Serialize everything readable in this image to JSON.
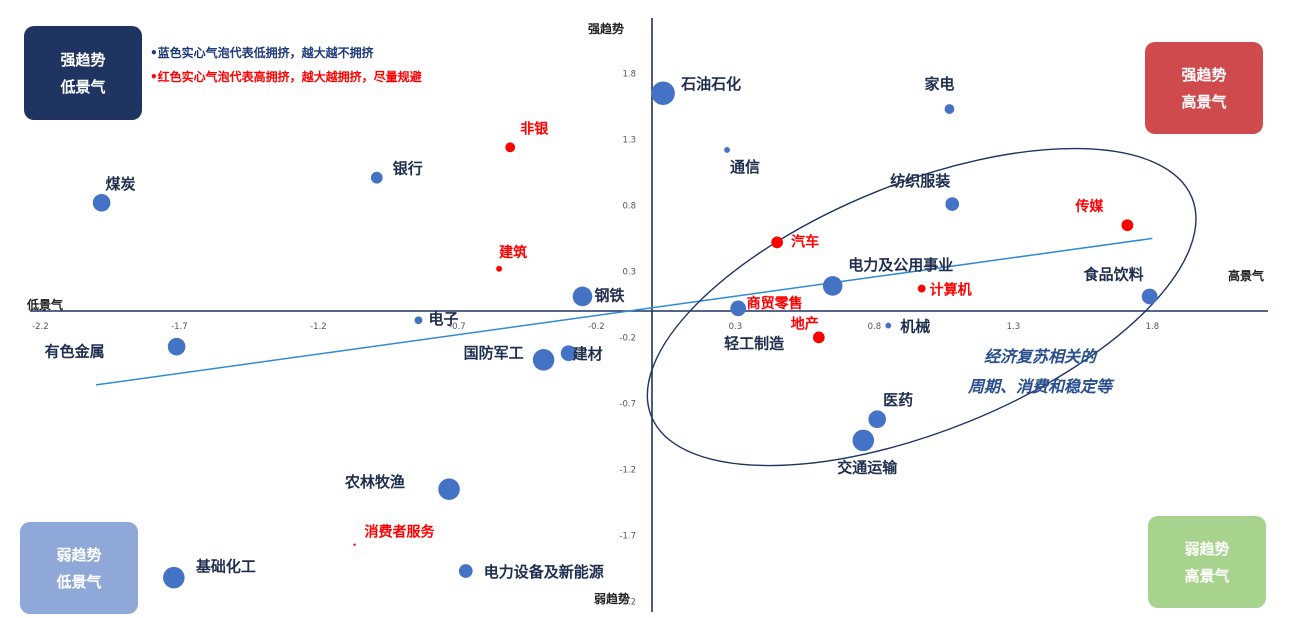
{
  "quadrants": {
    "top_left": {
      "line1": "强趋势",
      "line2": "低景气",
      "color": "#1f3461"
    },
    "top_right": {
      "line1": "强趋势",
      "line2": "高景气",
      "color": "#cf4a4d"
    },
    "bottom_left": {
      "line1": "弱趋势",
      "line2": "低景气",
      "color": "#8fa8d8"
    },
    "bottom_right": {
      "line1": "弱趋势",
      "line2": "高景气",
      "color": "#a8d38f"
    }
  },
  "notes": {
    "blue": "•蓝色实心气泡代表低拥挤，越大越不拥挤",
    "red": "•红色实心气泡代表高拥挤，越大越拥挤，尽量规避"
  },
  "ellipse_note": {
    "line1": "经济复苏相关的",
    "line2": "周期、消费和稳定等"
  },
  "colors": {
    "blue_bubble": "#4472c4",
    "red_bubble": "#ff0000",
    "axis": "#1f3461",
    "trend": "#2e8bd6",
    "ellipse": "#1f3461"
  },
  "chart_data": {
    "type": "scatter",
    "title": "",
    "xlabel_pos": "高景气",
    "xlabel_neg": "低景气",
    "ylabel_pos": "强趋势",
    "ylabel_neg": "弱趋势",
    "xlim": [
      -2.4,
      2.2
    ],
    "ylim": [
      -2.2,
      2.0
    ],
    "x_ticks": [
      -2.2,
      -1.7,
      -1.2,
      -0.7,
      -0.2,
      0.3,
      0.8,
      1.3,
      1.8
    ],
    "y_ticks": [
      1.8,
      1.3,
      0.8,
      0.3,
      -0.2,
      -0.7,
      -1.2,
      -1.7,
      -2.2
    ],
    "trendline": {
      "x1": -2.0,
      "y1": -0.56,
      "x2": 1.8,
      "y2": 0.55
    },
    "ellipse": {
      "cx": 0.97,
      "cy": 0.03,
      "rx": 1.38,
      "ry": 1.02,
      "rotate": -22
    },
    "points": [
      {
        "name": "石油石化",
        "x": 0.04,
        "y": 1.65,
        "size": 12,
        "color": "blue"
      },
      {
        "name": "家电",
        "x": 1.07,
        "y": 1.53,
        "size": 5,
        "color": "blue"
      },
      {
        "name": "通信",
        "x": 0.27,
        "y": 1.22,
        "size": 3,
        "color": "blue"
      },
      {
        "name": "非银",
        "x": -0.51,
        "y": 1.24,
        "size": 5,
        "color": "red"
      },
      {
        "name": "银行",
        "x": -0.99,
        "y": 1.01,
        "size": 6,
        "color": "blue"
      },
      {
        "name": "煤炭",
        "x": -1.98,
        "y": 0.82,
        "size": 9,
        "color": "blue"
      },
      {
        "name": "纺织服装",
        "x": 1.08,
        "y": 0.81,
        "size": 7,
        "color": "blue"
      },
      {
        "name": "传媒",
        "x": 1.71,
        "y": 0.65,
        "size": 6,
        "color": "red"
      },
      {
        "name": "汽车",
        "x": 0.45,
        "y": 0.52,
        "size": 6,
        "color": "red"
      },
      {
        "name": "建筑",
        "x": -0.55,
        "y": 0.32,
        "size": 3,
        "color": "red"
      },
      {
        "name": "电力及公用事业",
        "x": 0.65,
        "y": 0.19,
        "size": 10,
        "color": "blue"
      },
      {
        "name": "计算机",
        "x": 0.97,
        "y": 0.17,
        "size": 4,
        "color": "red"
      },
      {
        "name": "食品饮料",
        "x": 1.79,
        "y": 0.11,
        "size": 8,
        "color": "blue"
      },
      {
        "name": "钢铁",
        "x": -0.25,
        "y": 0.11,
        "size": 10,
        "color": "blue"
      },
      {
        "name": "商贸零售",
        "x": 0.47,
        "y": 0.07,
        "size": 1,
        "color": "red"
      },
      {
        "name": "轻工制造",
        "x": 0.31,
        "y": 0.02,
        "size": 8,
        "color": "blue"
      },
      {
        "name": "电子",
        "x": -0.84,
        "y": -0.07,
        "size": 4,
        "color": "blue"
      },
      {
        "name": "机械",
        "x": 0.85,
        "y": -0.11,
        "size": 3,
        "color": "blue"
      },
      {
        "name": "地产",
        "x": 0.6,
        "y": -0.2,
        "size": 6,
        "color": "red"
      },
      {
        "name": "有色金属",
        "x": -1.71,
        "y": -0.27,
        "size": 9,
        "color": "blue"
      },
      {
        "name": "建材",
        "x": -0.3,
        "y": -0.32,
        "size": 8,
        "color": "blue"
      },
      {
        "name": "国防军工",
        "x": -0.39,
        "y": -0.37,
        "size": 11,
        "color": "blue"
      },
      {
        "name": "医药",
        "x": 0.81,
        "y": -0.82,
        "size": 9,
        "color": "blue"
      },
      {
        "name": "交通运输",
        "x": 0.76,
        "y": -0.98,
        "size": 11,
        "color": "blue"
      },
      {
        "name": "农林牧渔",
        "x": -0.73,
        "y": -1.35,
        "size": 11,
        "color": "blue"
      },
      {
        "name": "消费者服务",
        "x": -1.07,
        "y": -1.77,
        "size": 1,
        "color": "red"
      },
      {
        "name": "基础化工",
        "x": -1.72,
        "y": -2.02,
        "size": 11,
        "color": "blue"
      },
      {
        "name": "电力设备及新能源",
        "x": -0.67,
        "y": -1.97,
        "size": 7,
        "color": "blue"
      }
    ]
  }
}
